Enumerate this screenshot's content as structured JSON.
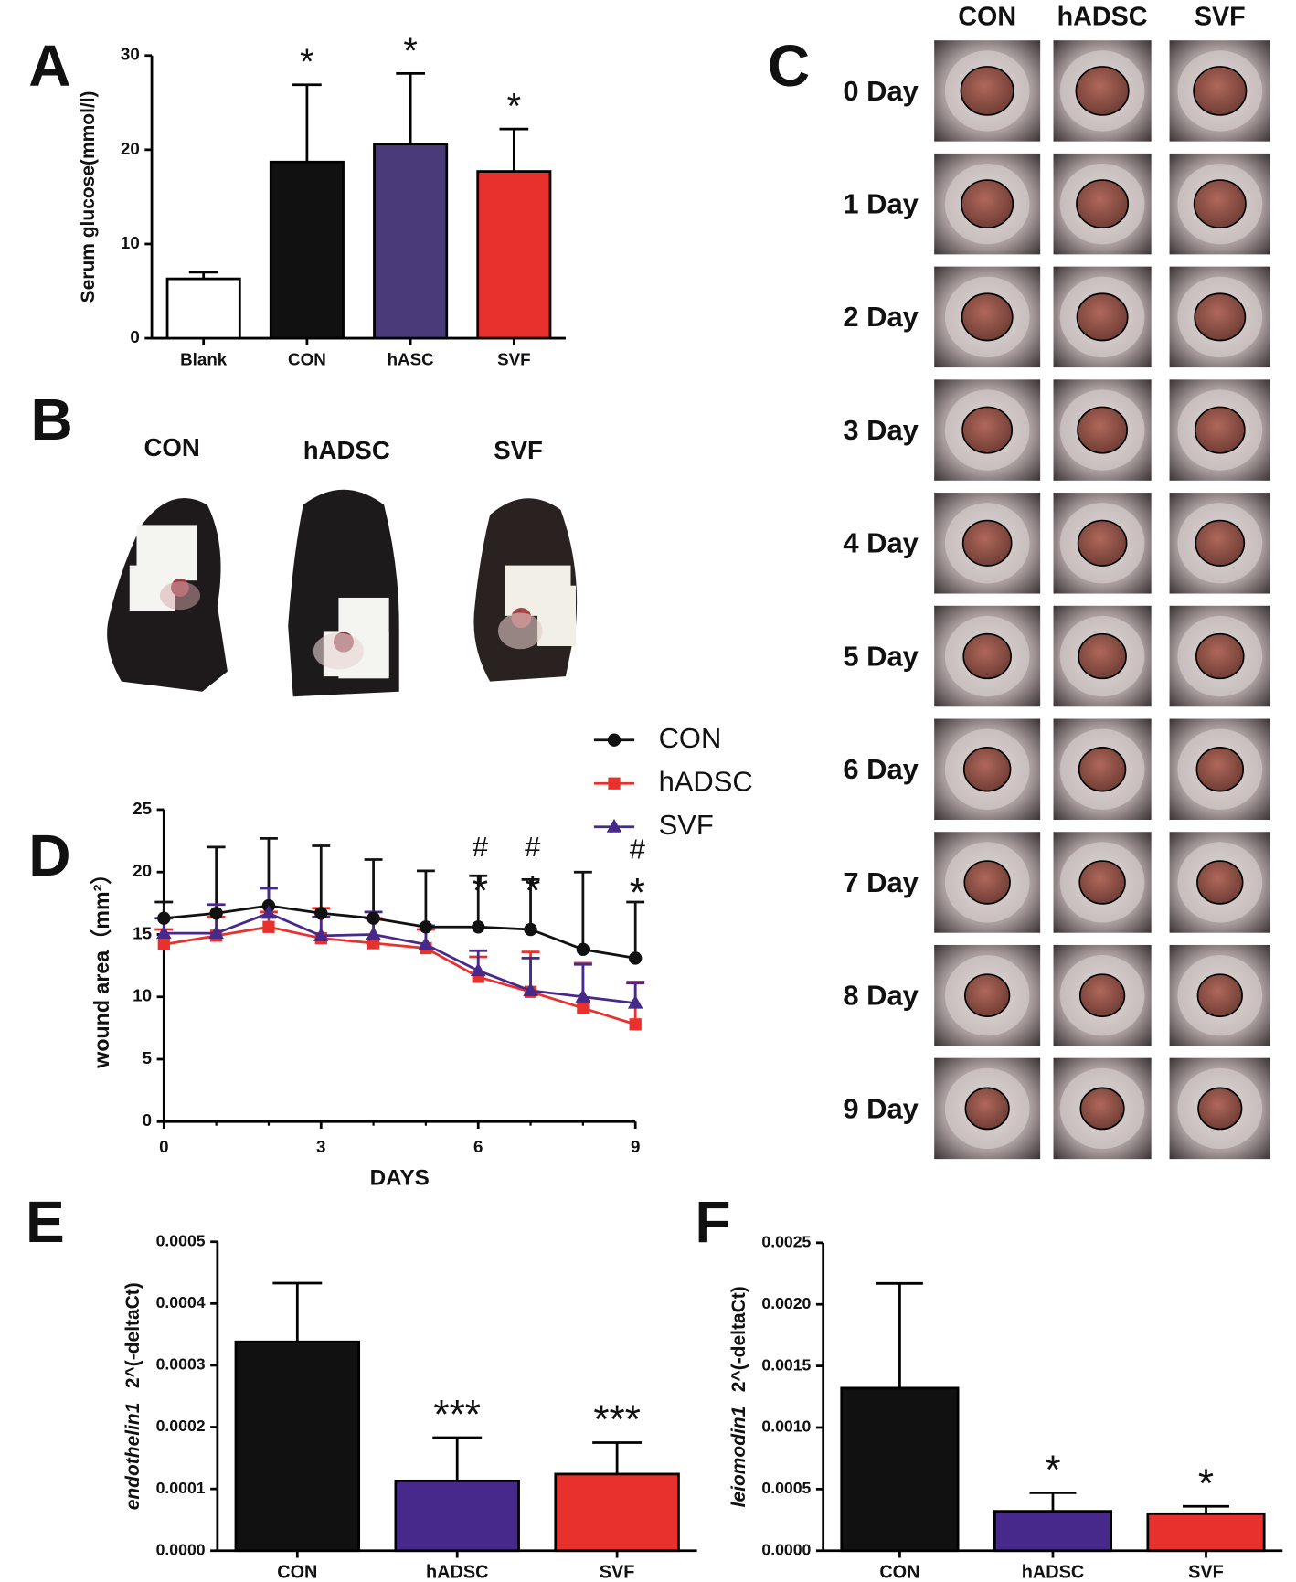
{
  "chart_data": [
    {
      "type": "bar",
      "panel": "A",
      "ylabel": "Serum glucose(mmol/l)",
      "categories": [
        "Blank",
        "CON",
        "hASC",
        "SVF"
      ],
      "values": [
        6.3,
        18.7,
        20.6,
        17.7
      ],
      "errors": [
        0.7,
        8.2,
        7.5,
        4.5
      ],
      "colors": [
        "#ffffff",
        "#111111",
        "#4b3a7a",
        "#e8302d"
      ],
      "annotations": [
        null,
        "*",
        "*",
        "*"
      ],
      "ylim": [
        0,
        30
      ],
      "yticks": [
        0,
        10,
        20,
        30
      ]
    },
    {
      "type": "line",
      "panel": "D",
      "xlabel": "DAYS",
      "ylabel": "wound area（mm²）",
      "x": [
        0,
        1,
        2,
        3,
        4,
        5,
        6,
        7,
        8,
        9
      ],
      "series": [
        {
          "name": "CON",
          "color": "#111111",
          "marker": "circle",
          "values": [
            16.3,
            16.7,
            17.3,
            16.7,
            16.3,
            15.6,
            15.6,
            15.4,
            13.8,
            13.1
          ],
          "errors": [
            1.3,
            5.3,
            5.4,
            5.4,
            4.7,
            4.5,
            4.1,
            4.0,
            6.2,
            4.5
          ]
        },
        {
          "name": "hADSC",
          "color": "#e8302d",
          "marker": "square",
          "values": [
            14.2,
            14.9,
            15.6,
            14.7,
            14.3,
            13.9,
            11.6,
            10.4,
            9.1,
            7.8
          ],
          "errors": [
            1.2,
            1.5,
            1.2,
            2.4,
            2.0,
            1.5,
            1.6,
            3.2,
            3.6,
            3.4
          ]
        },
        {
          "name": "SVF",
          "color": "#46298a",
          "marker": "triangle",
          "values": [
            15.1,
            15.1,
            16.7,
            14.9,
            15.0,
            14.2,
            12.1,
            10.5,
            10.0,
            9.5
          ],
          "errors": [
            1.2,
            2.3,
            2.0,
            1.5,
            1.8,
            1.5,
            1.6,
            2.6,
            2.6,
            1.6
          ]
        }
      ],
      "annotations": [
        {
          "x": 6,
          "labels": [
            "#",
            "*"
          ]
        },
        {
          "x": 7,
          "labels": [
            "#",
            "*"
          ]
        },
        {
          "x": 9,
          "labels": [
            "#",
            "*"
          ]
        }
      ],
      "xlim": [
        0,
        9
      ],
      "xticks": [
        0,
        3,
        6,
        9
      ],
      "ylim": [
        0,
        25
      ],
      "yticks": [
        0,
        5,
        10,
        15,
        20,
        25
      ]
    },
    {
      "type": "bar",
      "panel": "E",
      "ylabel_gene": "endothelin1",
      "ylabel": "2^(-deltaCt)",
      "categories": [
        "CON",
        "hADSC",
        "SVF"
      ],
      "values": [
        0.000338,
        0.000113,
        0.000124
      ],
      "errors": [
        9.5e-05,
        7e-05,
        5.1e-05
      ],
      "colors": [
        "#111111",
        "#46298a",
        "#e8302d"
      ],
      "annotations": [
        null,
        "***",
        "***"
      ],
      "ylim": [
        0,
        0.0005
      ],
      "yticks": [
        {
          "value": 0,
          "label": "0.0000"
        },
        0.0001,
        0.0002,
        0.0003,
        0.0004,
        0.0005
      ]
    },
    {
      "type": "bar",
      "panel": "F",
      "ylabel_gene": "leiomodin1",
      "ylabel": "2^(-deltaCt)",
      "categories": [
        "CON",
        "hADSC",
        "SVF"
      ],
      "values": [
        0.00132,
        0.00032,
        0.0003
      ],
      "errors": [
        0.00085,
        0.00015,
        6e-05
      ],
      "colors": [
        "#111111",
        "#46298a",
        "#e8302d"
      ],
      "annotations": [
        null,
        "*",
        "*"
      ],
      "ylim": [
        0,
        0.0025
      ],
      "yticks": [
        {
          "value": 0,
          "label": "0.0000"
        },
        0.0005,
        {
          "value": 0.001,
          "label": "0.0010"
        },
        0.0015,
        {
          "value": 0.002,
          "label": "0.0020"
        },
        0.0025
      ]
    }
  ],
  "mouse_photos": {
    "panel": "B",
    "labels": [
      "CON",
      "hADSC",
      "SVF"
    ]
  },
  "wound_photos": {
    "panel": "C",
    "columns": [
      "CON",
      "hADSC",
      "SVF"
    ],
    "rows": [
      "0 Day",
      "1 Day",
      "2 Day",
      "3 Day",
      "4 Day",
      "5 Day",
      "6 Day",
      "7 Day",
      "8 Day",
      "9 Day"
    ]
  }
}
